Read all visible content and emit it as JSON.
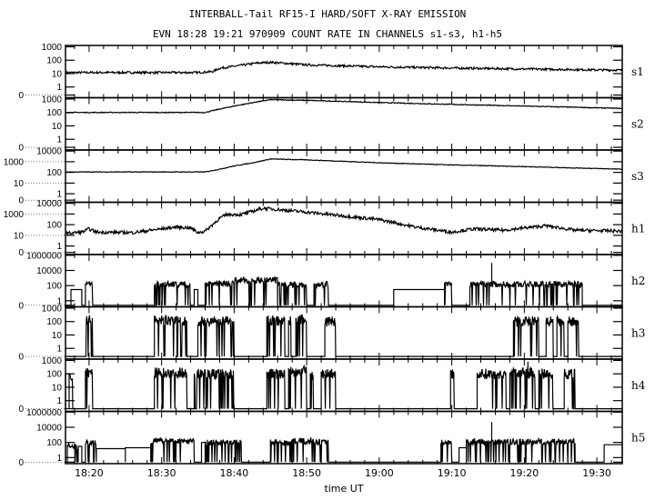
{
  "title": "INTERBALL-Tail RF15-I HARD/SOFT X-RAY EMISSION",
  "subtitle": "EVN 18:28 19:21 970909  COUNT RATE IN CHANNELS s1-s3, h1-h5",
  "chart_data": {
    "type": "line",
    "xlabel": "time UT",
    "x_ticks": [
      "18:20",
      "18:30",
      "18:40",
      "18:50",
      "19:00",
      "19:10",
      "19:20",
      "19:30"
    ],
    "xlim": [
      "18:16:45",
      "19:33:30"
    ],
    "y_scale": "log",
    "grid": false,
    "color": "#000000",
    "panels": [
      {
        "name": "s1",
        "yticks": [
          "1000",
          "100",
          "10",
          "1",
          "0"
        ],
        "ylim": [
          0,
          1000
        ],
        "noise": 0.08,
        "points": [
          [
            "18:16:45",
            12
          ],
          [
            "18:35",
            12
          ],
          [
            "18:37",
            14
          ],
          [
            "18:38",
            25
          ],
          [
            "18:40",
            35
          ],
          [
            "18:43",
            60
          ],
          [
            "18:45",
            70
          ],
          [
            "18:50",
            45
          ],
          [
            "19:00",
            32
          ],
          [
            "19:10",
            26
          ],
          [
            "19:20",
            22
          ],
          [
            "19:33:30",
            18
          ]
        ]
      },
      {
        "name": "s2",
        "yticks": [
          "1000",
          "100",
          "10",
          "1",
          "0"
        ],
        "ylim": [
          0,
          1000
        ],
        "noise": 0.03,
        "points": [
          [
            "18:16:45",
            100
          ],
          [
            "18:36",
            100
          ],
          [
            "18:38",
            180
          ],
          [
            "18:40",
            300
          ],
          [
            "18:43",
            600
          ],
          [
            "18:45",
            900
          ],
          [
            "18:50",
            800
          ],
          [
            "19:00",
            550
          ],
          [
            "19:10",
            400
          ],
          [
            "19:20",
            300
          ],
          [
            "19:33:30",
            200
          ]
        ]
      },
      {
        "name": "s3",
        "yticks": [
          "10000",
          "1000",
          "100",
          "10",
          "1",
          "0"
        ],
        "ylim": [
          0,
          10000
        ],
        "noise": 0.03,
        "points": [
          [
            "18:16:45",
            110
          ],
          [
            "18:36",
            110
          ],
          [
            "18:38",
            200
          ],
          [
            "18:40",
            400
          ],
          [
            "18:43",
            900
          ],
          [
            "18:45",
            1800
          ],
          [
            "18:50",
            1500
          ],
          [
            "19:00",
            800
          ],
          [
            "19:10",
            500
          ],
          [
            "19:20",
            350
          ],
          [
            "19:33:30",
            200
          ]
        ]
      },
      {
        "name": "h1",
        "yticks": [
          "10000",
          "1000",
          "100",
          "10",
          "1",
          "0"
        ],
        "ylim": [
          0,
          10000
        ],
        "noise": 0.15,
        "points": [
          [
            "18:16:45",
            15
          ],
          [
            "18:19",
            20
          ],
          [
            "18:20",
            40
          ],
          [
            "18:21",
            20
          ],
          [
            "18:26",
            18
          ],
          [
            "18:30",
            40
          ],
          [
            "18:32",
            60
          ],
          [
            "18:34",
            50
          ],
          [
            "18:35",
            18
          ],
          [
            "18:36",
            25
          ],
          [
            "18:38",
            400
          ],
          [
            "18:39",
            900
          ],
          [
            "18:41",
            900
          ],
          [
            "18:44",
            3500
          ],
          [
            "18:50",
            1500
          ],
          [
            "19:00",
            300
          ],
          [
            "19:05",
            60
          ],
          [
            "19:10",
            20
          ],
          [
            "19:13",
            40
          ],
          [
            "19:17",
            30
          ],
          [
            "19:23",
            80
          ],
          [
            "19:27",
            30
          ],
          [
            "19:33:30",
            25
          ]
        ]
      },
      {
        "name": "h2",
        "yticks": [
          "1000000",
          "10000",
          "100",
          "1",
          "0"
        ],
        "ylim": [
          0,
          1000000
        ],
        "segments": [
          [
            "18:17:30",
            "18:19",
            30,
            false
          ],
          [
            "18:19:30",
            "18:20:30",
            150,
            true
          ],
          [
            "18:29",
            "18:34",
            150,
            true
          ],
          [
            "18:34:30",
            "18:35",
            30,
            false
          ],
          [
            "18:36",
            "18:40",
            200,
            true
          ],
          [
            "18:40",
            "18:46",
            500,
            true
          ],
          [
            "18:46",
            "18:50",
            150,
            true
          ],
          [
            "18:51",
            "18:53",
            150,
            true
          ],
          [
            "19:02",
            "19:09",
            30,
            false
          ],
          [
            "19:09",
            "19:10",
            150,
            true
          ],
          [
            "19:12:30",
            "19:28",
            150,
            true
          ]
        ],
        "spikes": [
          [
            "19:15:30",
            100000
          ]
        ]
      },
      {
        "name": "h3",
        "yticks": [
          "1000",
          "100",
          "10",
          "1",
          "0"
        ],
        "ylim": [
          0,
          1000
        ],
        "segments": [
          [
            "18:19:30",
            "18:20:30",
            150,
            true
          ],
          [
            "18:29",
            "18:33:30",
            120,
            true
          ],
          [
            "18:35",
            "18:40",
            100,
            true
          ],
          [
            "18:44:30",
            "18:47",
            120,
            true
          ],
          [
            "18:47:30",
            "18:47:50",
            100,
            true
          ],
          [
            "18:48:30",
            "18:50",
            150,
            true
          ],
          [
            "18:52:30",
            "18:54",
            100,
            true
          ],
          [
            "19:18:30",
            "19:22",
            100,
            true
          ],
          [
            "19:23",
            "19:24",
            100,
            true
          ],
          [
            "19:24:30",
            "19:25:30",
            100,
            true
          ],
          [
            "19:26",
            "19:27:30",
            100,
            true
          ]
        ]
      },
      {
        "name": "h4",
        "yticks": [
          "1000",
          "100",
          "10",
          "1",
          "0"
        ],
        "ylim": [
          0,
          1000
        ],
        "segments": [
          [
            "18:16:45",
            "18:17:15",
            100,
            false
          ],
          [
            "18:17:15",
            "18:17:45",
            60,
            true
          ],
          [
            "18:19:30",
            "18:20:30",
            120,
            true
          ],
          [
            "18:29",
            "18:33:30",
            120,
            true
          ],
          [
            "18:34:30",
            "18:40",
            100,
            true
          ],
          [
            "18:44:30",
            "18:47",
            100,
            true
          ],
          [
            "18:47:30",
            "18:50",
            150,
            true
          ],
          [
            "18:50:30",
            "18:51",
            80,
            true
          ],
          [
            "18:52",
            "18:54",
            100,
            true
          ],
          [
            "19:09:50",
            "19:10:20",
            100,
            true
          ],
          [
            "19:13:30",
            "19:17:30",
            100,
            true
          ],
          [
            "19:18",
            "19:21:30",
            120,
            true
          ],
          [
            "19:22",
            "19:24",
            100,
            true
          ],
          [
            "19:25:30",
            "19:27",
            100,
            true
          ]
        ],
        "spikes": [
          [
            "19:20:30",
            800
          ]
        ]
      },
      {
        "name": "h5",
        "yticks": [
          "1000000",
          "10000",
          "100",
          "1",
          "0"
        ],
        "ylim": [
          0,
          1000000
        ],
        "segments": [
          [
            "18:17",
            "18:18:30",
            30,
            true
          ],
          [
            "18:18:30",
            "18:19",
            30,
            false
          ],
          [
            "18:19:30",
            "18:21",
            100,
            true
          ],
          [
            "18:21",
            "18:25",
            15,
            false
          ],
          [
            "18:25",
            "18:28:30",
            20,
            false
          ],
          [
            "18:28:30",
            "18:34:30",
            150,
            true
          ],
          [
            "18:35:30",
            "18:36",
            100,
            false
          ],
          [
            "18:36",
            "18:41",
            100,
            true
          ],
          [
            "18:45",
            "18:48",
            100,
            true
          ],
          [
            "18:48",
            "18:51",
            150,
            true
          ],
          [
            "18:51",
            "18:53",
            100,
            true
          ],
          [
            "19:08:30",
            "19:10",
            100,
            true
          ],
          [
            "19:11",
            "19:12",
            20,
            false
          ],
          [
            "19:12",
            "19:27",
            120,
            true
          ],
          [
            "19:31",
            "19:33:30",
            50,
            false
          ]
        ],
        "spikes": [
          [
            "19:15:30",
            50000
          ]
        ]
      }
    ]
  }
}
